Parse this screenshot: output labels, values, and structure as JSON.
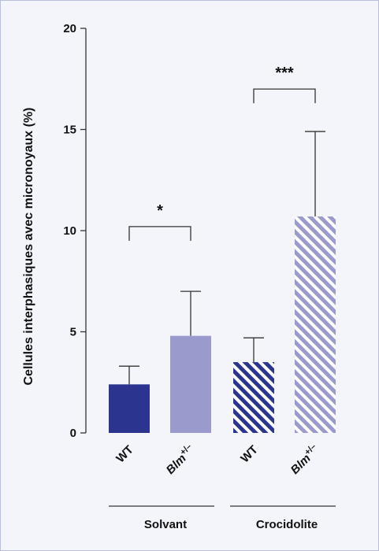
{
  "chart_data": {
    "type": "bar",
    "ylabel": "Cellules interphasiques avec micronoyaux (%)",
    "ylim": [
      0,
      20
    ],
    "yticks": [
      0,
      5,
      10,
      15,
      20
    ],
    "groups": [
      {
        "name": "Solvant",
        "bars": [
          0,
          1
        ]
      },
      {
        "name": "Crocidolite",
        "bars": [
          2,
          3
        ]
      }
    ],
    "bars": [
      {
        "label": "WT",
        "sup": "",
        "value": 2.4,
        "error": 0.9,
        "color": "#2b3590",
        "hatched": false
      },
      {
        "label": "Blm",
        "sup": "+/–",
        "value": 4.8,
        "error": 2.2,
        "color": "#9a9bcc",
        "hatched": false
      },
      {
        "label": "WT",
        "sup": "",
        "value": 3.5,
        "error": 1.2,
        "color": "#2b3590",
        "hatched": true
      },
      {
        "label": "Blm",
        "sup": "+/–",
        "value": 10.7,
        "error": 4.2,
        "color": "#9a9bcc",
        "hatched": true
      }
    ],
    "significance": [
      {
        "from": 0,
        "to": 1,
        "label": "*",
        "y": 10.2
      },
      {
        "from": 2,
        "to": 3,
        "label": "***",
        "y": 17.0
      }
    ],
    "colors": {
      "axis": "#333333",
      "text": "#111111",
      "background": "#f4f5fa"
    }
  }
}
